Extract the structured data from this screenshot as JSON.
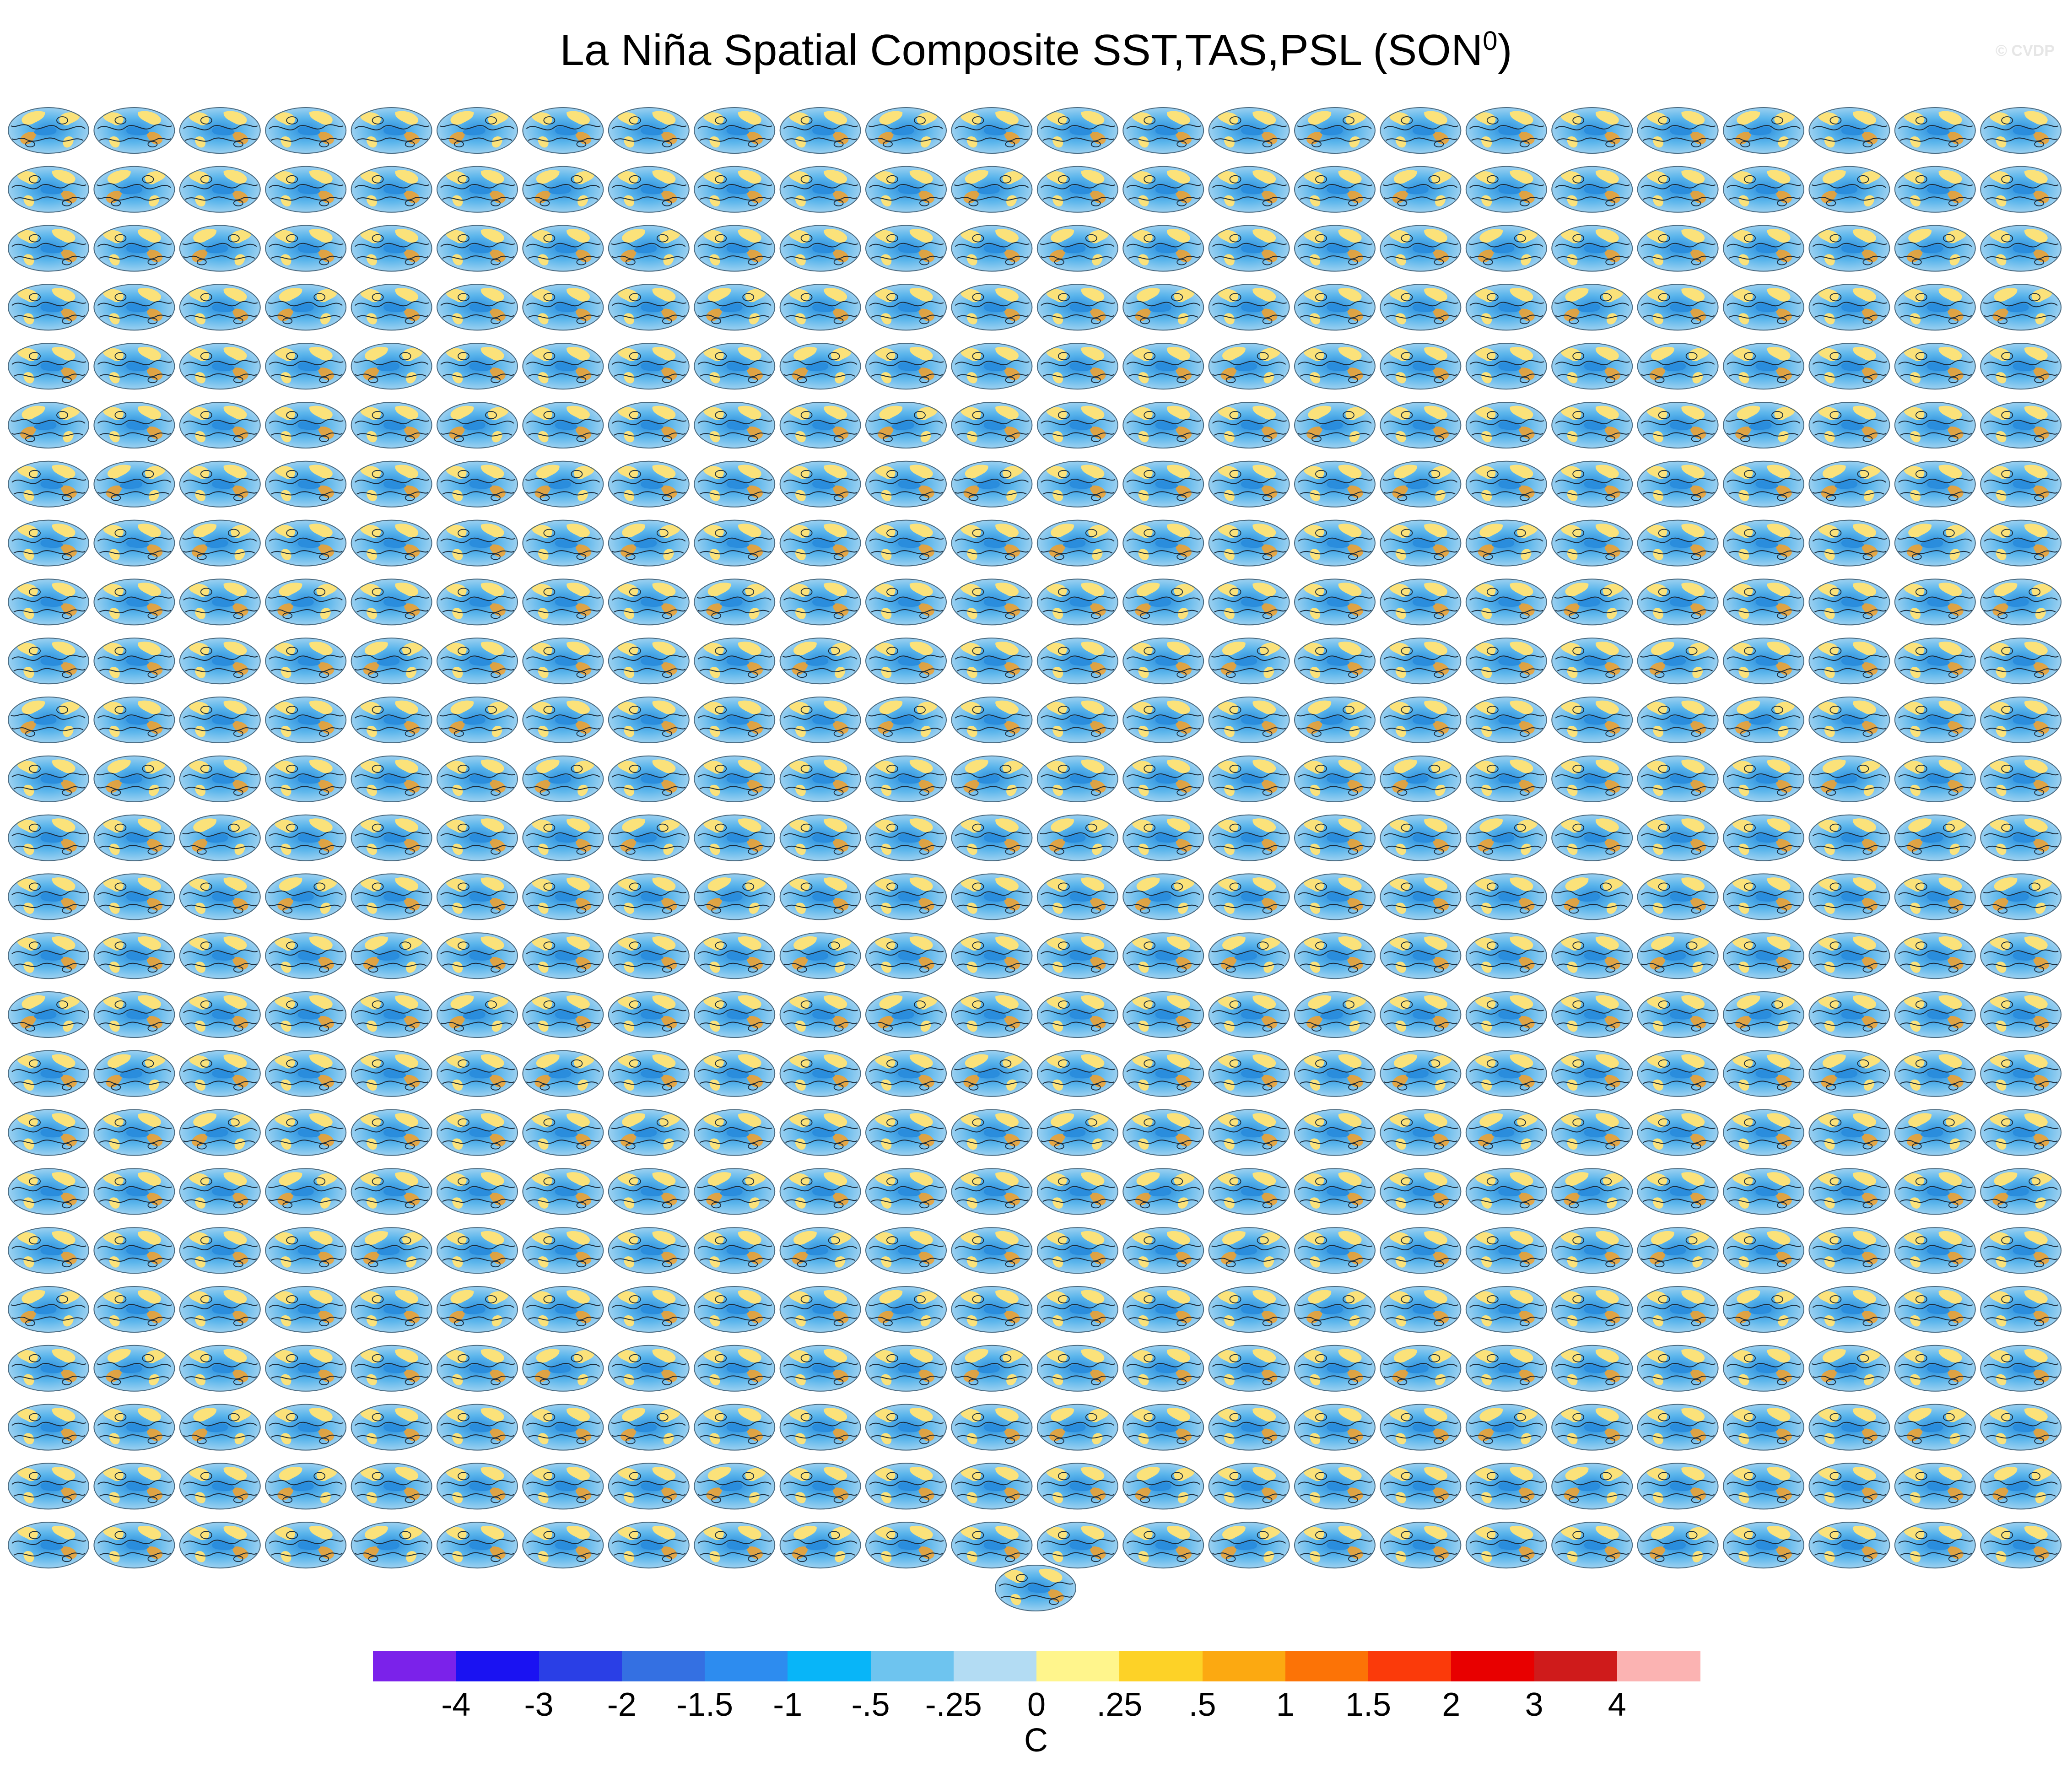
{
  "figure": {
    "title_main": "La Niña Spatial Composite SST,TAS,PSL (SON",
    "title_sup": "0",
    "title_end": ")",
    "watermark": "© CVDP"
  },
  "panel_grid": {
    "rows": 25,
    "columns": 24,
    "extra_panels": 1
  },
  "colorbar": {
    "labels": [
      "-4",
      "-3",
      "-2",
      "-1.5",
      "-1",
      "-.5",
      "-.25",
      "0",
      ".25",
      ".5",
      "1",
      "1.5",
      "2",
      "3",
      "4"
    ],
    "colors": [
      "#7b22ea",
      "#1a12f2",
      "#2a3fe6",
      "#3470e2",
      "#2d8cef",
      "#08b5f8",
      "#6ec4ef",
      "#b3dcf3",
      "#fff58c",
      "#fdd227",
      "#fca911",
      "#fc7306",
      "#fb3a0a",
      "#e80000",
      "#cf1b1b",
      "#fbb3b2"
    ],
    "units": "C"
  },
  "map_colors": {
    "ocean_cool": "#5cb6ec",
    "ocean_cold": "#2a8ddd",
    "pale": "#b7dcf2",
    "warm": "#fbe27a",
    "hot": "#f6a027",
    "contour": "#1a2a3a"
  }
}
